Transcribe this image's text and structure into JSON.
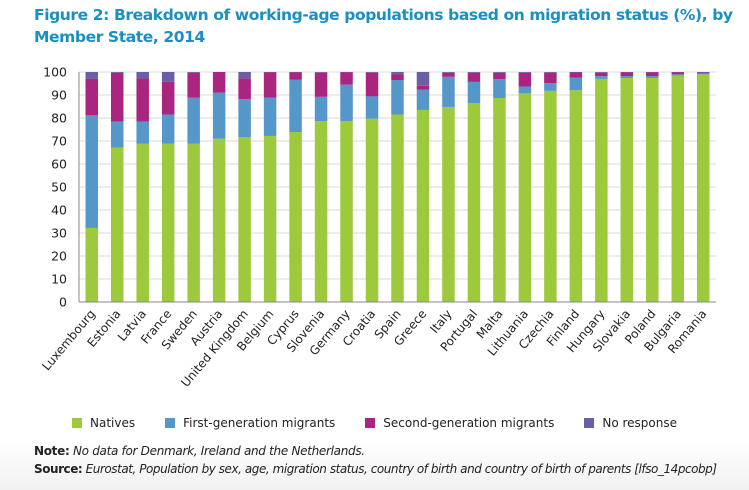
{
  "figure": {
    "title": "Figure 2: Breakdown of working-age populations based on migration status (%), by Member State, 2014"
  },
  "legend": [
    {
      "label": "Natives",
      "color": "#9dc93c"
    },
    {
      "label": "First-generation migrants",
      "color": "#5597c8"
    },
    {
      "label": "Second-generation migrants",
      "color": "#a9257f"
    },
    {
      "label": "No response",
      "color": "#6b5ea6"
    }
  ],
  "footer": {
    "note_label": "Note:",
    "note_text": "No data for Denmark, Ireland and the Netherlands.",
    "source_label": "Source:",
    "source_text": "Eurostat, Population by sex, age, migration status, country of birth and country of birth of parents [lfso_14pcobp]"
  },
  "chart_data": {
    "type": "bar",
    "stacked": true,
    "title": "Figure 2: Breakdown of working-age populations based on migration status (%), by Member State, 2014",
    "xlabel": "",
    "ylabel": "",
    "ylim": [
      0,
      100
    ],
    "yticks": [
      0,
      10,
      20,
      30,
      40,
      50,
      60,
      70,
      80,
      90,
      100
    ],
    "grid": true,
    "legend_position": "bottom",
    "categories": [
      "Luxembourg",
      "Estonia",
      "Latvia",
      "France",
      "Sweden",
      "Austria",
      "United Kingdom",
      "Belgium",
      "Cyprus",
      "Slovenia",
      "Germany",
      "Croatia",
      "Spain",
      "Greece",
      "Italy",
      "Portugal",
      "Malta",
      "Lithuania",
      "Czechia",
      "Finland",
      "Hungary",
      "Slovakia",
      "Poland",
      "Bulgaria",
      "Romania"
    ],
    "series": [
      {
        "name": "Natives",
        "color": "#9dc93c",
        "values": [
          32.2,
          67.1,
          68.8,
          68.8,
          68.8,
          71.0,
          71.6,
          72.2,
          73.9,
          78.6,
          78.7,
          79.7,
          81.5,
          83.5,
          84.8,
          86.4,
          88.7,
          90.7,
          91.8,
          92.1,
          97.0,
          97.4,
          97.4,
          98.5,
          99.0
        ]
      },
      {
        "name": "First-generation migrants",
        "color": "#5597c8",
        "values": [
          49.1,
          11.4,
          9.7,
          12.7,
          20.0,
          20.0,
          16.6,
          16.7,
          22.7,
          10.6,
          15.8,
          9.7,
          15.0,
          8.8,
          13.1,
          9.3,
          8.2,
          3.0,
          3.4,
          5.4,
          1.2,
          0.8,
          0.8,
          0.5,
          0.2
        ]
      },
      {
        "name": "Second-generation migrants",
        "color": "#a9257f",
        "values": [
          15.8,
          21.1,
          18.7,
          14.3,
          10.8,
          9.0,
          9.1,
          10.9,
          3.2,
          10.5,
          5.3,
          10.3,
          2.4,
          1.7,
          1.8,
          3.9,
          2.8,
          5.9,
          4.5,
          2.3,
          1.5,
          1.6,
          1.6,
          0.8,
          0.3
        ]
      },
      {
        "name": "No response",
        "color": "#6b5ea6",
        "values": [
          2.9,
          0.4,
          2.8,
          4.2,
          0.4,
          0.0,
          2.7,
          0.2,
          0.2,
          0.3,
          0.2,
          0.3,
          1.1,
          6.0,
          0.3,
          0.4,
          0.3,
          0.4,
          0.3,
          0.2,
          0.3,
          0.2,
          0.2,
          0.2,
          0.5
        ]
      }
    ]
  }
}
